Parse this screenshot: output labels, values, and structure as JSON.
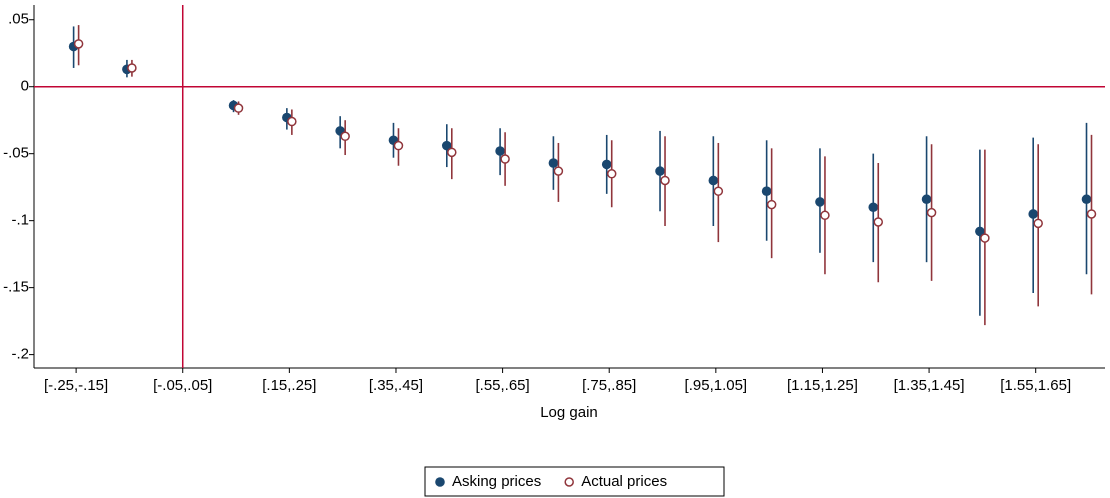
{
  "chart_data": {
    "type": "coefplot",
    "x_label": "Log gain",
    "categories": [
      "[-.25,-.15]",
      null,
      "[-.05,.05]",
      null,
      "[.15,.25]",
      null,
      "[.35,.45]",
      null,
      "[.55,.65]",
      null,
      "[.75,.85]",
      null,
      "[.95,1.05]",
      null,
      "[1.15,1.25]",
      null,
      "[1.35,1.45]",
      null,
      "[1.55,1.65]",
      null
    ],
    "series": [
      {
        "name": "Asking prices",
        "color": "#1a476f",
        "marker": "filled",
        "values": [
          0.03,
          0.013,
          null,
          -0.014,
          -0.023,
          -0.033,
          -0.04,
          -0.044,
          -0.048,
          -0.057,
          -0.058,
          -0.063,
          -0.07,
          -0.078,
          -0.086,
          -0.09,
          -0.084,
          -0.108,
          -0.095,
          -0.084
        ],
        "low": [
          0.014,
          0.007,
          null,
          -0.019,
          -0.032,
          -0.046,
          -0.053,
          -0.06,
          -0.066,
          -0.077,
          -0.08,
          -0.093,
          -0.104,
          -0.115,
          -0.124,
          -0.131,
          -0.131,
          -0.171,
          -0.154,
          -0.14
        ],
        "high": [
          0.045,
          0.02,
          null,
          -0.01,
          -0.016,
          -0.022,
          -0.027,
          -0.028,
          -0.031,
          -0.037,
          -0.036,
          -0.033,
          -0.037,
          -0.04,
          -0.046,
          -0.05,
          -0.037,
          -0.047,
          -0.038,
          -0.027
        ]
      },
      {
        "name": "Actual prices",
        "color": "#90353b",
        "marker": "hollow",
        "values": [
          0.032,
          0.014,
          null,
          -0.016,
          -0.026,
          -0.037,
          -0.044,
          -0.049,
          -0.054,
          -0.063,
          -0.065,
          -0.07,
          -0.078,
          -0.088,
          -0.096,
          -0.101,
          -0.094,
          -0.113,
          -0.102,
          -0.095
        ],
        "low": [
          0.016,
          0.0075,
          null,
          -0.021,
          -0.036,
          -0.051,
          -0.059,
          -0.069,
          -0.074,
          -0.086,
          -0.09,
          -0.104,
          -0.116,
          -0.128,
          -0.14,
          -0.146,
          -0.145,
          -0.178,
          -0.164,
          -0.155
        ],
        "high": [
          0.046,
          0.02,
          null,
          -0.011,
          -0.017,
          -0.025,
          -0.031,
          -0.031,
          -0.034,
          -0.042,
          -0.04,
          -0.037,
          -0.042,
          -0.046,
          -0.052,
          -0.057,
          -0.043,
          -0.047,
          -0.043,
          -0.036
        ]
      }
    ],
    "ylim": [
      -0.21,
      0.061
    ],
    "yticks": [
      {
        "value": 0.05,
        "label": ".05"
      },
      0,
      {
        "value": -0.05,
        "label": "-.05"
      },
      {
        "value": -0.1,
        "label": "-.1"
      },
      {
        "value": -0.15,
        "label": "-.15"
      },
      {
        "value": -0.2,
        "label": "-.2"
      }
    ],
    "yline": 0,
    "reference_line_color": "#c10534",
    "legend_position": "bottom"
  }
}
